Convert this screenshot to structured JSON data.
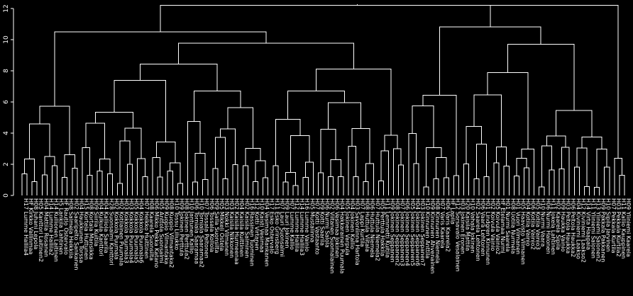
{
  "chart_data": {
    "type": "dendrogram",
    "title": "",
    "xlabel": "",
    "ylabel": "",
    "ylim": [
      0,
      12
    ],
    "y_ticks": [
      0,
      2,
      4,
      6,
      8,
      10,
      12
    ],
    "background": "#000000",
    "line_color": "#ffffff",
    "labels": [
      "H17 Lumme Hallila4",
      "HF Kirkko Vallinmaa",
      "H08 Juhani Lepola",
      "H05 Kanttori Laitinen2",
      "H04 Mattila Rosanen",
      "H14 Lumme Hallila2",
      "H14 Kullionen Laitinen",
      "H5 Lankila Lahtinen",
      "HF Rautlo Ostervalo",
      "H08 Salmela Heikkila",
      "H02 Saaripelto Sankanen",
      "H04 Haukkunen Torssa",
      "H15 Kortela Huttunen",
      "H08 Kortala Mansikka",
      "H09 Siirila Kuitila",
      "H04 Kulkula Kanttori",
      "H04 Kalliola Saarila",
      "H28 Suonsalmi Kanttori",
      "H02 Kokkola Puumala",
      "H02 Kotilainen Puumala",
      "H03 Kokkola Puumala3",
      "H03 Kokkola Puumala4",
      "H05 Kokkola Puumala5",
      "H04 Kokkola Puumala6",
      "H07 Helkko Huittinen",
      "H08 Kaarela Suonsilta",
      "H06 Mikko Pekka Katano",
      "H05 Anttola Suonsalmi",
      "H09 Kuopio Vilmantaka",
      "H08 Kuopio Vilmantaka2",
      "H10 Tossu Liliukko",
      "H09 Jokinen Perttula",
      "H08 Jokinen Perttula2",
      "H10 Jantunen Kallio",
      "H06 Torniala Saaramaa",
      "H10 Torniala Saaramaa2",
      "H07 Tossala Peltonen",
      "H06 Tossala Kollola",
      "H09 Salla Suonsilta",
      "H05 Mikkeli Ostela",
      "H03 Nokki Vilmanen",
      "H03 Kaisila Nikkonen",
      "H02 Kaisila Hurmeenaa",
      "H04 Kaisila Kuittinen",
      "H02 Kaisila Salminen",
      "H16 Rassinen Tuominen",
      "H12 Kotti Virtanen",
      "H10 Kaisti Vesimaa",
      "H04 Vesimaa Mankanen",
      "H17 Esko Ostervalo",
      "H11 Esko Grinsberg",
      "H07 Lauri Suonsalmi",
      "H09 Lauri Jokinen",
      "H07 Lumme Kallio",
      "H12 Lumme Hallila",
      "H14 Lumme Hallila3",
      "H16 Lumme Vainio",
      "H05 Mustalinna",
      "H07 Kotti Vastaanto",
      "H09 Kotti Saarila",
      "H06 Nurmi Salola",
      "H02 Viitanen Suomalainen",
      "H06 Vesimaa Jokinen",
      "H04 Hakkarainen Puumala",
      "H05 Jokinen Varpula",
      "H04 Jokinen Kallio",
      "H03 Savonlinna Hartola",
      "H07 Lappi Kurtila",
      "H08 Huttula Viitala",
      "H06 Huttula Niemela",
      "H07 Huttula Niemela2",
      "H05 Perttula Hakkila",
      "H11 Lemmetti Kuitila",
      "H09 Jokinen Seppanen",
      "H08 Jokinen Seppanen2",
      "H07 Jokinen Seppanen3",
      "H06 Jokinen Seppanen4",
      "H05 Jokinen Seppanen5",
      "H04 Jokinen Seppanen6",
      "H03 Jokinen Seppanen7",
      "H10 Kinnunen Anttila",
      "H09 Kinnunen Ahvenainen",
      "H08 Kinnunen Niemela",
      "H07 Varis Kaarela",
      "H06 Varis Kaarela2",
      "HF Lapila",
      "H12 Sorsavalo Vesalainen",
      "H03 Jokinen Eronen",
      "H20 Kaisila Mattila",
      "H10 Vahala Jokinen",
      "H02 Saarela Lehtonen",
      "H06 Vaara Lehtonen",
      "H01 Lindgren Kinnunen",
      "H02 Koivula Vainio",
      "H05 Koivula Vainio2",
      "HF Etelamaa Nurmi",
      "H01 Nurmi Saarela",
      "H08 Uotila Nurmela",
      "H01 Vuori Vilmanen",
      "H05 Haavisto Vilmanen",
      "H04 Kotila Vainio",
      "H06 Kotila Vainio2",
      "H05 Kotila Vainio3",
      "H10 Nurmi Vaara",
      "H06 Nurmi Halonen",
      "H11 Jokela Lahtinen",
      "H02 Kaarela Sipila",
      "H09 Haukka Vainio",
      "H03 Peltola Haukka",
      "H06 Peltola Haukka2",
      "H04 Kiviniemi Laakso",
      "H12 Kiviniemi Laakso2",
      "H14 Virta Haapala",
      "H11 Yliniemi Salonen",
      "H13 Yliniemi Salonen2",
      "H09 Pakkala Pakkanen",
      "H10 Sipila Jarvinen",
      "H07 Pekkala Kurtila",
      "H03 Pekkala Kurtila2",
      "H11 Kallio Kauppinen",
      "H09 Yliniemi Kaarela"
    ]
  }
}
